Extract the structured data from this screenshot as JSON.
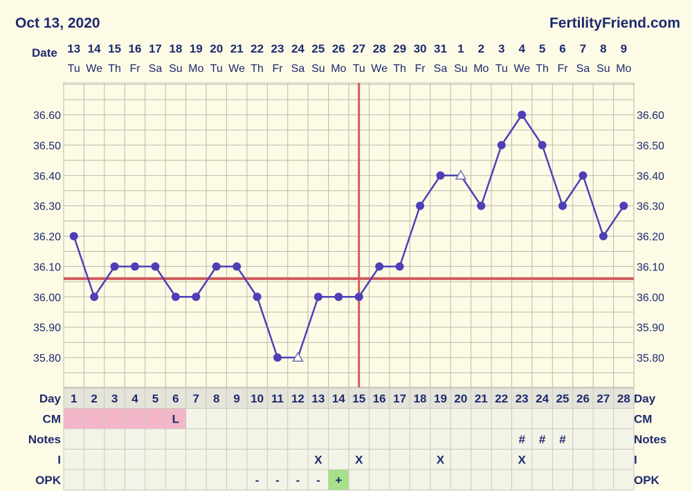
{
  "header": {
    "date": "Oct 13, 2020",
    "site": "FertilityFriend.com"
  },
  "labels": {
    "date_row": "Date",
    "day_row": "Day",
    "cm_row": "CM",
    "notes_row": "Notes",
    "i_row": "I",
    "opk_row": "OPK"
  },
  "colors": {
    "line": "#4e3fb8",
    "coverline": "#d05a5a",
    "ovulation_line": "#d05a5a",
    "grid": "#b9b9a8",
    "chart_bg": "#fdfbe6",
    "table_bg": "#f3f3e8",
    "cm_pink": "#f3b7c9",
    "opk_green": "#a6e28a"
  },
  "chart_data": {
    "type": "line",
    "dates": [
      "13",
      "14",
      "15",
      "16",
      "17",
      "18",
      "19",
      "20",
      "21",
      "22",
      "23",
      "24",
      "25",
      "26",
      "27",
      "28",
      "29",
      "30",
      "31",
      "1",
      "2",
      "3",
      "4",
      "5",
      "6",
      "7",
      "8",
      "9"
    ],
    "weekdays": [
      "Tu",
      "We",
      "Th",
      "Fr",
      "Sa",
      "Su",
      "Mo",
      "Tu",
      "We",
      "Th",
      "Fr",
      "Sa",
      "Su",
      "Mo",
      "Tu",
      "We",
      "Th",
      "Fr",
      "Sa",
      "Su",
      "Mo",
      "Tu",
      "We",
      "Th",
      "Fr",
      "Sa",
      "Su",
      "Mo"
    ],
    "cycle_days": [
      "1",
      "2",
      "3",
      "4",
      "5",
      "6",
      "7",
      "8",
      "9",
      "10",
      "11",
      "12",
      "13",
      "14",
      "15",
      "16",
      "17",
      "18",
      "19",
      "20",
      "21",
      "22",
      "23",
      "24",
      "25",
      "26",
      "27",
      "28"
    ],
    "temperatures": [
      36.2,
      36.0,
      36.1,
      36.1,
      36.1,
      36.0,
      36.0,
      36.1,
      36.1,
      36.0,
      35.8,
      35.8,
      36.0,
      36.0,
      36.0,
      36.1,
      36.1,
      36.3,
      36.4,
      36.4,
      36.3,
      36.5,
      36.6,
      36.5,
      36.3,
      36.4,
      36.2,
      36.3
    ],
    "discarded_points": [
      12,
      20
    ],
    "y_ticks": [
      "36.60",
      "36.50",
      "36.40",
      "36.30",
      "36.20",
      "36.10",
      "36.00",
      "35.90",
      "35.80"
    ],
    "ylim": [
      35.73,
      36.69
    ],
    "coverline": 36.06,
    "ovulation_day": 15,
    "cm": [
      "",
      "",
      "",
      "",
      "",
      "L",
      "",
      "",
      "",
      "",
      "",
      "",
      "",
      "",
      "",
      "",
      "",
      "",
      "",
      "",
      "",
      "",
      "",
      "",
      "",
      "",
      "",
      ""
    ],
    "cm_pink_days": [
      1,
      2,
      3,
      4,
      5,
      6
    ],
    "notes": [
      "",
      "",
      "",
      "",
      "",
      "",
      "",
      "",
      "",
      "",
      "",
      "",
      "",
      "",
      "",
      "",
      "",
      "",
      "",
      "",
      "",
      "",
      "#",
      "#",
      "#",
      "",
      "",
      ""
    ],
    "intercourse": [
      "",
      "",
      "",
      "",
      "",
      "",
      "",
      "",
      "",
      "",
      "",
      "",
      "X",
      "",
      "X",
      "",
      "",
      "",
      "X",
      "",
      "",
      "",
      "X",
      "",
      "",
      "",
      "",
      ""
    ],
    "opk": [
      "",
      "",
      "",
      "",
      "",
      "",
      "",
      "",
      "",
      "-",
      "-",
      "-",
      "-",
      "+",
      "",
      "",
      "",
      "",
      "",
      "",
      "",
      "",
      "",
      "",
      "",
      "",
      "",
      ""
    ],
    "grid": true
  }
}
